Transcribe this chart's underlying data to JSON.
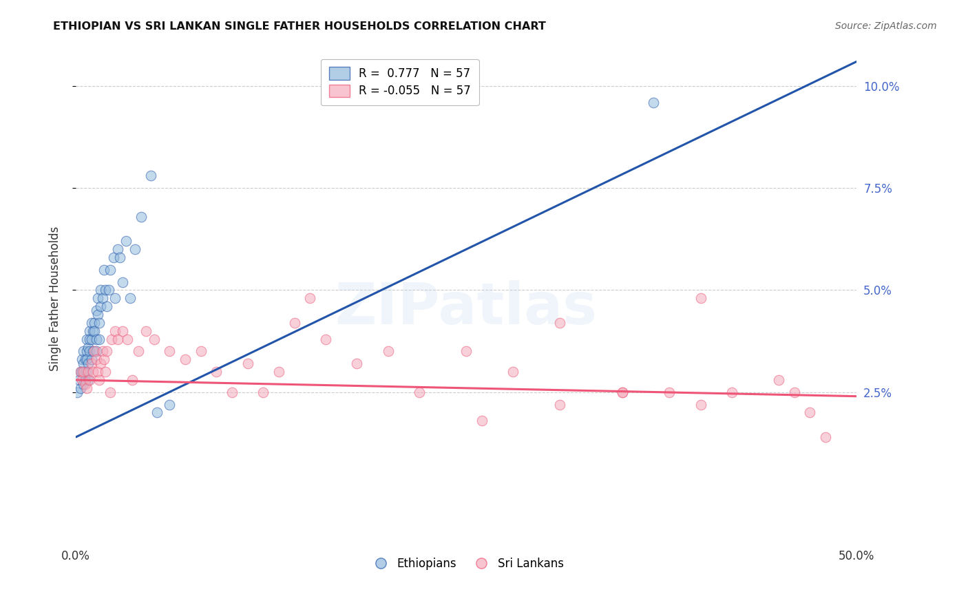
{
  "title": "ETHIOPIAN VS SRI LANKAN SINGLE FATHER HOUSEHOLDS CORRELATION CHART",
  "source": "Source: ZipAtlas.com",
  "ylabel": "Single Father Households",
  "ytick_labels": [
    "10.0%",
    "7.5%",
    "5.0%",
    "2.5%"
  ],
  "ytick_values": [
    0.1,
    0.075,
    0.05,
    0.025
  ],
  "legend1": "R =  0.777   N = 57",
  "legend2": "R = -0.055   N = 57",
  "legend_label1": "Ethiopians",
  "legend_label2": "Sri Lankans",
  "blue_color": "#92BADD",
  "pink_color": "#F4ABBB",
  "line_blue": "#2255AA",
  "line_pink": "#EE5577",
  "xlim": [
    0.0,
    0.5
  ],
  "ylim": [
    -0.012,
    0.108
  ],
  "ethiopians_x": [
    0.001,
    0.002,
    0.003,
    0.003,
    0.004,
    0.004,
    0.005,
    0.005,
    0.005,
    0.006,
    0.006,
    0.006,
    0.007,
    0.007,
    0.007,
    0.007,
    0.008,
    0.008,
    0.008,
    0.009,
    0.009,
    0.009,
    0.01,
    0.01,
    0.01,
    0.011,
    0.011,
    0.012,
    0.012,
    0.013,
    0.013,
    0.013,
    0.014,
    0.014,
    0.015,
    0.015,
    0.016,
    0.016,
    0.017,
    0.018,
    0.019,
    0.02,
    0.021,
    0.022,
    0.024,
    0.025,
    0.027,
    0.028,
    0.03,
    0.032,
    0.035,
    0.038,
    0.042,
    0.048,
    0.052,
    0.06,
    0.37
  ],
  "ethiopians_y": [
    0.025,
    0.028,
    0.03,
    0.026,
    0.03,
    0.033,
    0.027,
    0.032,
    0.035,
    0.033,
    0.028,
    0.03,
    0.038,
    0.035,
    0.03,
    0.033,
    0.036,
    0.032,
    0.028,
    0.04,
    0.035,
    0.038,
    0.042,
    0.038,
    0.033,
    0.04,
    0.035,
    0.042,
    0.04,
    0.038,
    0.045,
    0.035,
    0.044,
    0.048,
    0.042,
    0.038,
    0.046,
    0.05,
    0.048,
    0.055,
    0.05,
    0.046,
    0.05,
    0.055,
    0.058,
    0.048,
    0.06,
    0.058,
    0.052,
    0.062,
    0.048,
    0.06,
    0.068,
    0.078,
    0.02,
    0.022,
    0.096
  ],
  "srilankans_x": [
    0.003,
    0.004,
    0.005,
    0.006,
    0.007,
    0.008,
    0.009,
    0.01,
    0.011,
    0.012,
    0.013,
    0.014,
    0.015,
    0.016,
    0.017,
    0.018,
    0.019,
    0.02,
    0.022,
    0.023,
    0.025,
    0.027,
    0.03,
    0.033,
    0.036,
    0.04,
    0.045,
    0.05,
    0.06,
    0.07,
    0.08,
    0.09,
    0.1,
    0.11,
    0.12,
    0.13,
    0.14,
    0.16,
    0.18,
    0.2,
    0.22,
    0.25,
    0.28,
    0.31,
    0.35,
    0.38,
    0.4,
    0.42,
    0.45,
    0.46,
    0.47,
    0.48,
    0.31,
    0.35,
    0.15,
    0.26,
    0.4
  ],
  "srilankans_y": [
    0.03,
    0.028,
    0.03,
    0.027,
    0.026,
    0.03,
    0.028,
    0.032,
    0.03,
    0.035,
    0.033,
    0.03,
    0.028,
    0.032,
    0.035,
    0.033,
    0.03,
    0.035,
    0.025,
    0.038,
    0.04,
    0.038,
    0.04,
    0.038,
    0.028,
    0.035,
    0.04,
    0.038,
    0.035,
    0.033,
    0.035,
    0.03,
    0.025,
    0.032,
    0.025,
    0.03,
    0.042,
    0.038,
    0.032,
    0.035,
    0.025,
    0.035,
    0.03,
    0.022,
    0.025,
    0.025,
    0.022,
    0.025,
    0.028,
    0.025,
    0.02,
    0.014,
    0.042,
    0.025,
    0.048,
    0.018,
    0.048
  ],
  "eth_trendline_x": [
    0.0,
    0.5
  ],
  "eth_trendline_y": [
    0.014,
    0.106
  ],
  "sri_trendline_x": [
    0.0,
    0.5
  ],
  "sri_trendline_y": [
    0.028,
    0.024
  ]
}
